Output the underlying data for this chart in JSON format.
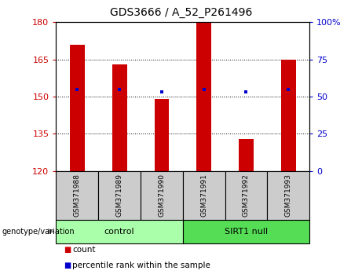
{
  "title": "GDS3666 / A_52_P261496",
  "samples": [
    "GSM371988",
    "GSM371989",
    "GSM371990",
    "GSM371991",
    "GSM371992",
    "GSM371993"
  ],
  "bar_heights": [
    171,
    163,
    149,
    180,
    133,
    165
  ],
  "bar_base": 120,
  "blue_markers": [
    153,
    153,
    152,
    153,
    152,
    153
  ],
  "ylim_left": [
    120,
    180
  ],
  "ylim_right": [
    0,
    100
  ],
  "yticks_left": [
    120,
    135,
    150,
    165,
    180
  ],
  "yticks_right": [
    0,
    25,
    50,
    75,
    100
  ],
  "ytick_labels_right": [
    "0",
    "25",
    "50",
    "75",
    "100%"
  ],
  "dotted_lines": [
    135,
    150,
    165
  ],
  "bar_color": "#cc0000",
  "blue_marker_color": "#0000cc",
  "groups": [
    {
      "label": "control",
      "indices": [
        0,
        1,
        2
      ],
      "color": "#aaffaa"
    },
    {
      "label": "SIRT1 null",
      "indices": [
        3,
        4,
        5
      ],
      "color": "#55dd55"
    }
  ],
  "genotype_label": "genotype/variation",
  "legend_count_label": "count",
  "legend_pct_label": "percentile rank within the sample",
  "axis_color_left": "#cc0000",
  "axis_color_right": "#0000cc",
  "cell_gray": "#cccccc",
  "bar_width": 0.35
}
